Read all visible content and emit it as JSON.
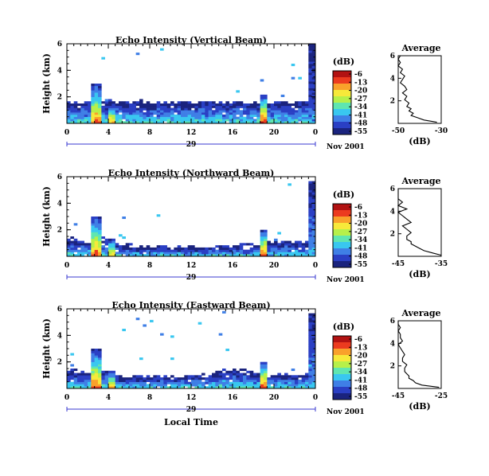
{
  "figure": {
    "x_axis_label": "Local Time",
    "date_label": "Nov 2001",
    "day_label": "29",
    "colorbar_unit": "(dB)",
    "colorbar_ticks": [
      "-6",
      "-13",
      "-20",
      "-27",
      "-34",
      "-41",
      "-48",
      "-55"
    ],
    "colormap": [
      "#1a237e",
      "#2a3fc4",
      "#3f7fe6",
      "#39c7f0",
      "#5fe6b0",
      "#b6f04a",
      "#f7e93a",
      "#f9a12b",
      "#ec3b1f",
      "#b21212"
    ],
    "profile_title": "Average",
    "profile_x_label": "(dB)"
  },
  "chart_data": [
    {
      "type": "heatmap",
      "title": "Echo Intensity (Vertical Beam)",
      "xlabel": "",
      "ylabel": "Height (km)",
      "xlim": [
        0,
        36
      ],
      "ylim": [
        0,
        6
      ],
      "x_ticks": [
        "0",
        "4",
        "8",
        "12",
        "16",
        "20",
        "0"
      ],
      "y_ticks": [
        "2",
        "4",
        "6"
      ],
      "clim": [
        -55,
        -6
      ],
      "layer_top_km": [
        1.5,
        1.45,
        1.5,
        1.5,
        1.6,
        1.5,
        1.6,
        1.5,
        1.5,
        1.5,
        1.55,
        1.5,
        1.5,
        1.5,
        1.5,
        1.5,
        1.5,
        1.5,
        1.5,
        1.5,
        1.5,
        1.5,
        1.5,
        1.5,
        1.5,
        1.5,
        1.5,
        1.5,
        1.5,
        1.5,
        1.5,
        1.5,
        1.5,
        1.5,
        1.5,
        1.5
      ],
      "plumes": [
        {
          "time_h": 4.2,
          "top_km": 3.0,
          "peak_db": -13
        },
        {
          "time_h": 6.5,
          "top_km": 1.4,
          "peak_db": -16
        },
        {
          "time_h": 28.5,
          "top_km": 2.2,
          "peak_db": -10
        },
        {
          "time_h": 35.5,
          "top_km": 6.0,
          "peak_db": -45
        }
      ],
      "profile": {
        "xlim": [
          -50,
          -30
        ],
        "x_ticks": [
          "-50",
          "-30"
        ],
        "y_ticks": [
          "2",
          "4",
          "6"
        ],
        "height_km": [
          0.1,
          0.3,
          0.5,
          0.7,
          0.9,
          1.1,
          1.3,
          1.5,
          1.8,
          2.1,
          2.4,
          2.7,
          3.0,
          3.3,
          3.6,
          3.9,
          4.2,
          4.5,
          4.8,
          5.1,
          5.4,
          5.7,
          6.0
        ],
        "db": [
          -32,
          -38,
          -41,
          -44,
          -43,
          -45,
          -44,
          -46,
          -45,
          -47,
          -46,
          -48,
          -46,
          -47,
          -49,
          -48,
          -47,
          -49,
          -48,
          -50,
          -49,
          -50,
          -49
        ]
      }
    },
    {
      "type": "heatmap",
      "title": "Echo Intensity (Northward Beam)",
      "xlabel": "",
      "ylabel": "Height (km)",
      "xlim": [
        0,
        36
      ],
      "ylim": [
        0,
        6
      ],
      "x_ticks": [
        "0",
        "4",
        "8",
        "12",
        "16",
        "20",
        "0"
      ],
      "y_ticks": [
        "2",
        "4",
        "6"
      ],
      "clim": [
        -55,
        -6
      ],
      "layer_top_km": [
        1.2,
        1.1,
        1.0,
        1.0,
        1.1,
        1.2,
        1.0,
        0.8,
        0.7,
        0.7,
        0.6,
        0.6,
        0.6,
        0.6,
        0.6,
        0.6,
        0.6,
        0.6,
        0.6,
        0.6,
        0.6,
        0.6,
        0.6,
        0.6,
        0.6,
        0.7,
        0.7,
        0.8,
        0.9,
        1.0,
        1.0,
        1.0,
        1.0,
        1.0,
        1.0,
        1.0
      ],
      "plumes": [
        {
          "time_h": 4.2,
          "top_km": 3.0,
          "peak_db": -13
        },
        {
          "time_h": 6.5,
          "top_km": 1.3,
          "peak_db": -16
        },
        {
          "time_h": 28.5,
          "top_km": 2.0,
          "peak_db": -10
        },
        {
          "time_h": 35.5,
          "top_km": 5.7,
          "peak_db": -40
        }
      ],
      "profile": {
        "xlim": [
          -45,
          -35
        ],
        "x_ticks": [
          "-45",
          "-35"
        ],
        "y_ticks": [
          "2",
          "4",
          "6"
        ],
        "height_km": [
          0.1,
          0.3,
          0.5,
          0.7,
          0.9,
          1.1,
          1.3,
          1.5,
          1.8,
          2.1,
          2.4,
          2.7,
          3.0,
          3.3,
          3.6,
          3.9,
          4.2,
          4.5,
          4.8,
          5.1,
          5.4,
          5.7,
          6.0
        ],
        "db": [
          -35,
          -37,
          -39,
          -40,
          -41,
          -42,
          -42,
          -43,
          -43,
          -42,
          -43,
          -44,
          -42,
          -43,
          -44,
          -45,
          -43,
          -45,
          -44,
          -46,
          -45,
          -46,
          -45
        ]
      }
    },
    {
      "type": "heatmap",
      "title": "Echo Intensity (Eastward Beam)",
      "xlabel": "Local Time",
      "ylabel": "Height (km)",
      "xlim": [
        0,
        36
      ],
      "ylim": [
        0,
        6
      ],
      "x_ticks": [
        "0",
        "4",
        "8",
        "12",
        "16",
        "20",
        "0"
      ],
      "y_ticks": [
        "2",
        "4",
        "6"
      ],
      "clim": [
        -55,
        -6
      ],
      "layer_top_km": [
        1.3,
        1.2,
        1.1,
        1.1,
        1.2,
        1.3,
        1.1,
        0.9,
        0.8,
        0.8,
        0.8,
        0.8,
        0.8,
        0.8,
        0.8,
        0.8,
        0.8,
        0.8,
        0.8,
        0.9,
        1.0,
        1.1,
        1.3,
        1.3,
        1.3,
        1.2,
        1.1,
        1.0,
        1.0,
        1.0,
        1.0,
        1.0,
        1.0,
        1.0,
        1.0,
        1.0
      ],
      "plumes": [
        {
          "time_h": 4.2,
          "top_km": 3.0,
          "peak_db": -13
        },
        {
          "time_h": 6.5,
          "top_km": 1.3,
          "peak_db": -16
        },
        {
          "time_h": 28.5,
          "top_km": 2.0,
          "peak_db": -10
        },
        {
          "time_h": 35.5,
          "top_km": 5.7,
          "peak_db": -40
        }
      ],
      "profile": {
        "xlim": [
          -45,
          -25
        ],
        "x_ticks": [
          "-45",
          "-25"
        ],
        "y_ticks": [
          "2",
          "4",
          "6"
        ],
        "height_km": [
          0.1,
          0.3,
          0.5,
          0.7,
          0.9,
          1.1,
          1.3,
          1.5,
          1.8,
          2.1,
          2.4,
          2.7,
          3.0,
          3.3,
          3.6,
          3.9,
          4.2,
          4.5,
          4.8,
          5.1,
          5.4,
          5.7,
          6.0
        ],
        "db": [
          -26,
          -34,
          -37,
          -38,
          -40,
          -40,
          -41,
          -42,
          -42,
          -41,
          -43,
          -43,
          -42,
          -43,
          -44,
          -45,
          -43,
          -44,
          -44,
          -45,
          -44,
          -45,
          -45
        ]
      }
    }
  ]
}
